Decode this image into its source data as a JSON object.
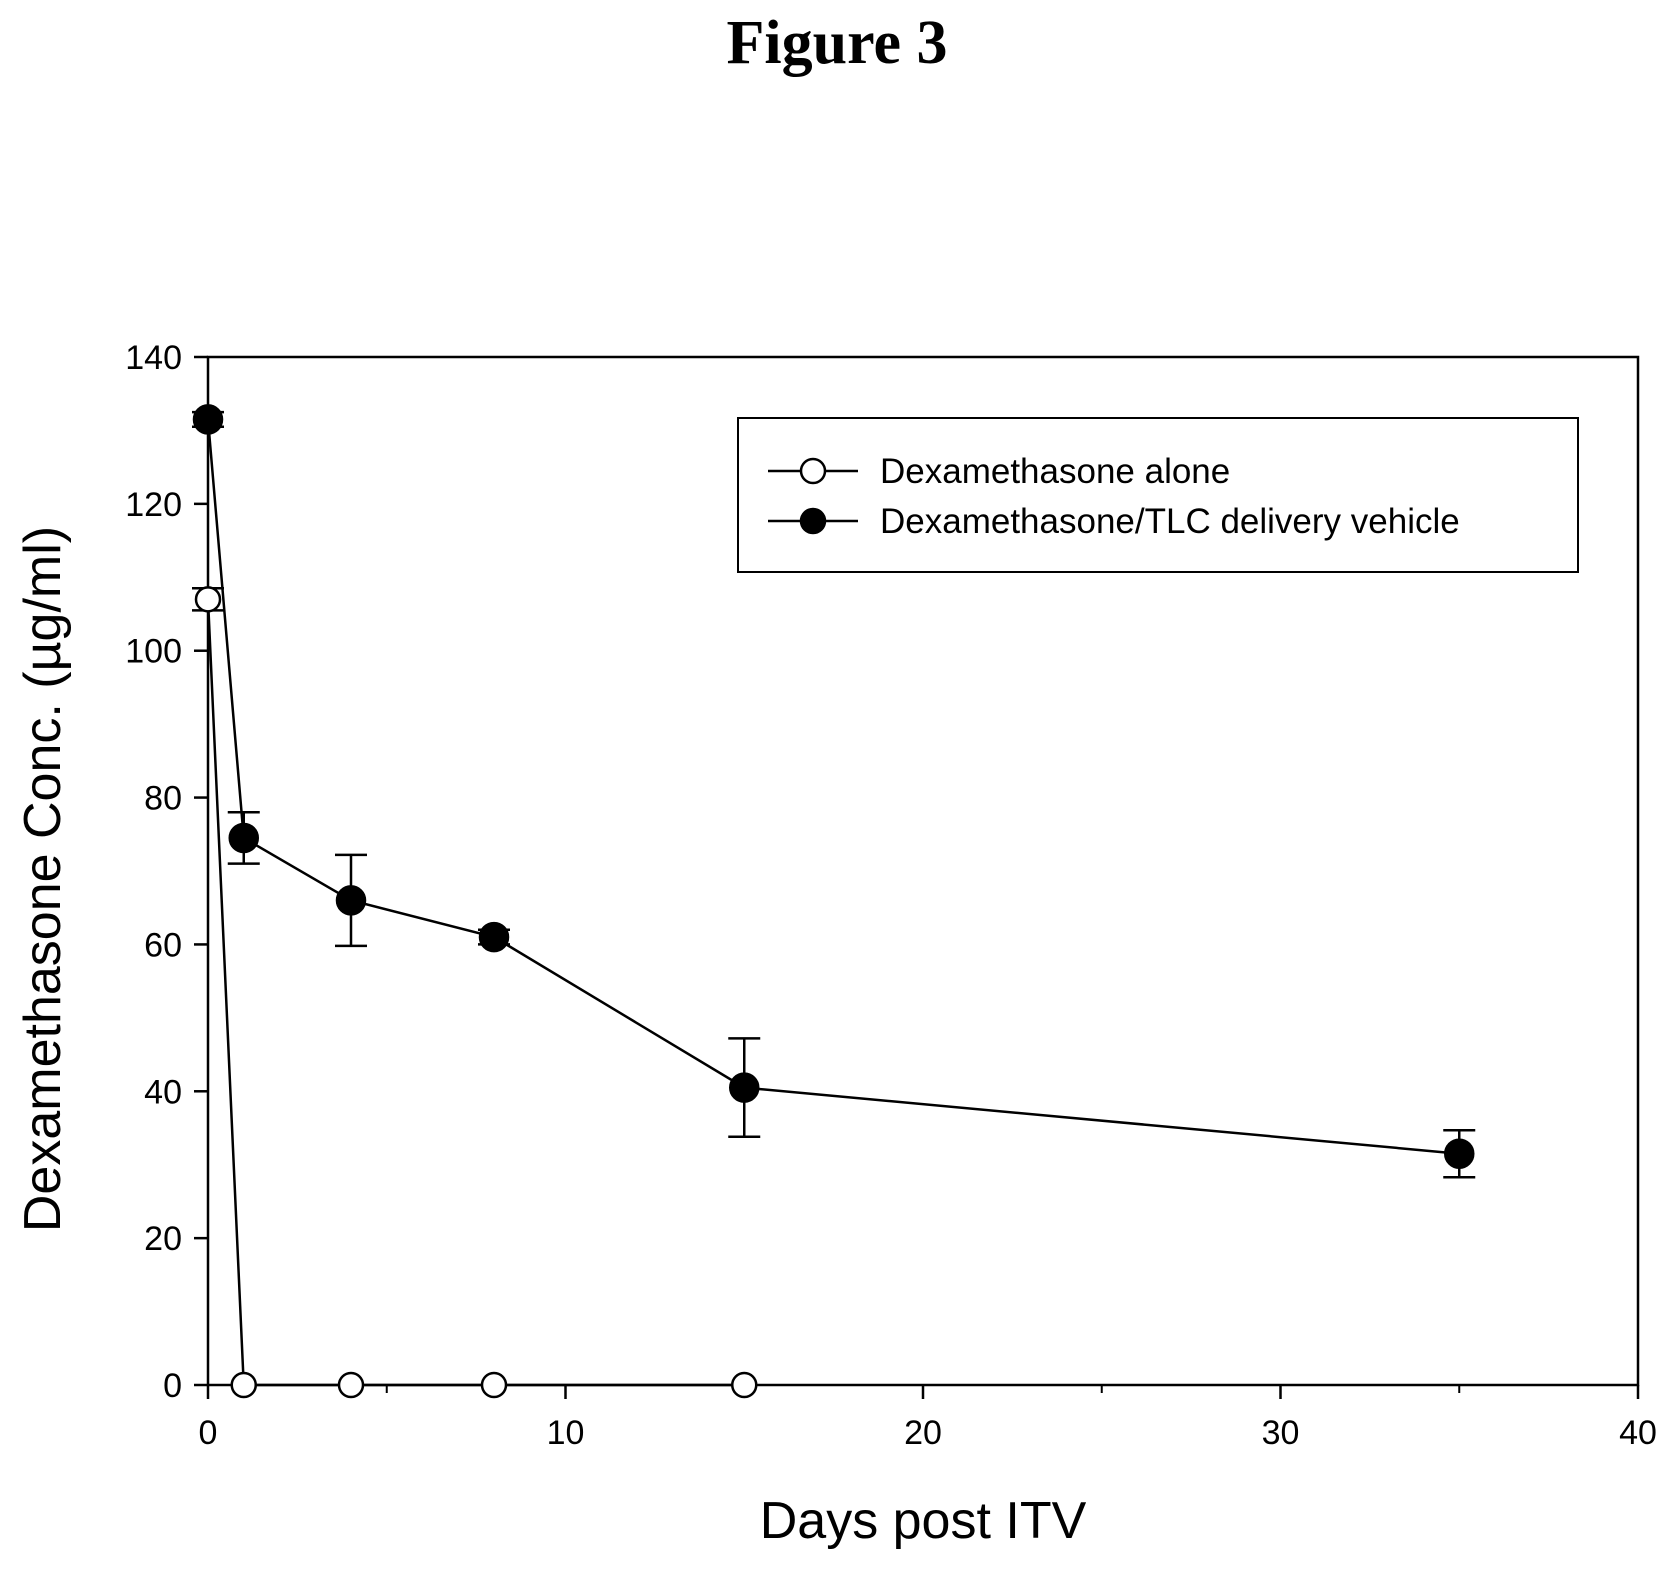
{
  "figure_title": "Figure 3",
  "chart_data": {
    "type": "line",
    "title": "Figure 3",
    "xlabel": "Days post ITV",
    "ylabel": "Dexamethasone Conc. (µg/ml)",
    "xlim": [
      0,
      40
    ],
    "ylim": [
      0,
      140
    ],
    "x_ticks": [
      0,
      10,
      20,
      30,
      40
    ],
    "y_ticks": [
      0,
      20,
      40,
      60,
      80,
      100,
      120,
      140
    ],
    "x_minor_ticks": [
      5,
      15,
      25,
      35
    ],
    "grid": false,
    "legend_position": "top-right",
    "series": [
      {
        "name": "Dexamethasone alone",
        "marker": "open-circle",
        "color": "#000000",
        "x": [
          0,
          1,
          4,
          8,
          15
        ],
        "y": [
          107,
          0,
          0,
          0,
          0
        ],
        "error": [
          1.5,
          0,
          0,
          0,
          0
        ]
      },
      {
        "name": "Dexamethasone/TLC delivery vehicle",
        "marker": "filled-circle",
        "color": "#000000",
        "x": [
          0,
          1,
          4,
          8,
          15,
          35
        ],
        "y": [
          131.5,
          74.5,
          66,
          61,
          40.5,
          31.5
        ],
        "error": [
          1,
          3.5,
          6.2,
          1,
          6.7,
          3.2
        ]
      }
    ]
  }
}
